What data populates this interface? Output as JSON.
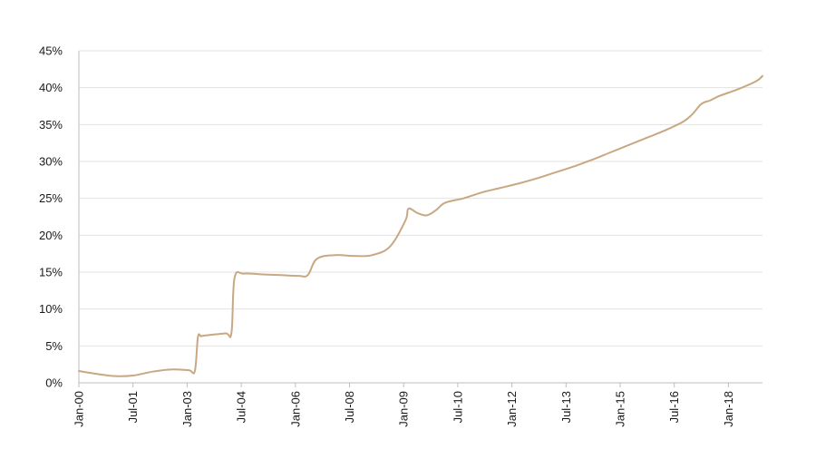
{
  "chart_data": {
    "type": "line",
    "title": "",
    "xlabel": "",
    "ylabel": "",
    "x_start": "2000-01",
    "x_end": "2018-09",
    "ylim": [
      0,
      45
    ],
    "y_ticks": [
      0,
      5,
      10,
      15,
      20,
      25,
      30,
      35,
      40,
      45
    ],
    "y_tick_labels": [
      "0%",
      "5%",
      "10%",
      "15%",
      "20%",
      "25%",
      "30%",
      "35%",
      "40%",
      "45%"
    ],
    "x_tick_labels": [
      "Jan-00",
      "Jul-01",
      "Jan-03",
      "Jul-04",
      "Jan-06",
      "Jul-08",
      "Jan-09",
      "Jul-10",
      "Jan-12",
      "Jul-13",
      "Jan-15",
      "Jul-16",
      "Jan-18"
    ],
    "grid": true,
    "legend": "none",
    "colors": {
      "series": "#c8a882"
    },
    "series": [
      {
        "x": [
          "2000-01",
          "2000-07",
          "2001-01",
          "2001-07",
          "2002-01",
          "2002-07",
          "2003-01",
          "2003-03",
          "2003-04",
          "2003-05",
          "2003-06",
          "2004-01",
          "2004-03",
          "2004-04",
          "2004-07",
          "2005-01",
          "2005-07",
          "2006-01",
          "2006-04",
          "2006-07",
          "2007-01",
          "2007-07",
          "2008-01",
          "2008-07",
          "2008-12",
          "2009-01",
          "2009-04",
          "2009-07",
          "2009-10",
          "2010-01",
          "2010-07",
          "2011-01",
          "2011-07",
          "2012-01",
          "2012-07",
          "2013-01",
          "2013-07",
          "2014-01",
          "2014-07",
          "2015-01",
          "2015-07",
          "2016-01",
          "2016-07",
          "2016-10",
          "2017-01",
          "2017-04",
          "2017-07",
          "2018-01",
          "2018-07",
          "2018-09"
        ],
        "values": [
          1.6,
          1.2,
          0.9,
          1.0,
          1.5,
          1.8,
          1.7,
          1.6,
          6.2,
          6.3,
          6.4,
          6.7,
          6.8,
          14.2,
          14.8,
          14.7,
          14.6,
          14.5,
          14.6,
          16.8,
          17.3,
          17.2,
          17.3,
          18.5,
          22.0,
          23.6,
          23.0,
          22.7,
          23.4,
          24.4,
          25.0,
          25.8,
          26.4,
          27.0,
          27.7,
          28.5,
          29.3,
          30.2,
          31.2,
          32.2,
          33.2,
          34.2,
          35.4,
          36.4,
          37.8,
          38.3,
          38.9,
          39.8,
          40.9,
          41.6
        ]
      }
    ]
  }
}
